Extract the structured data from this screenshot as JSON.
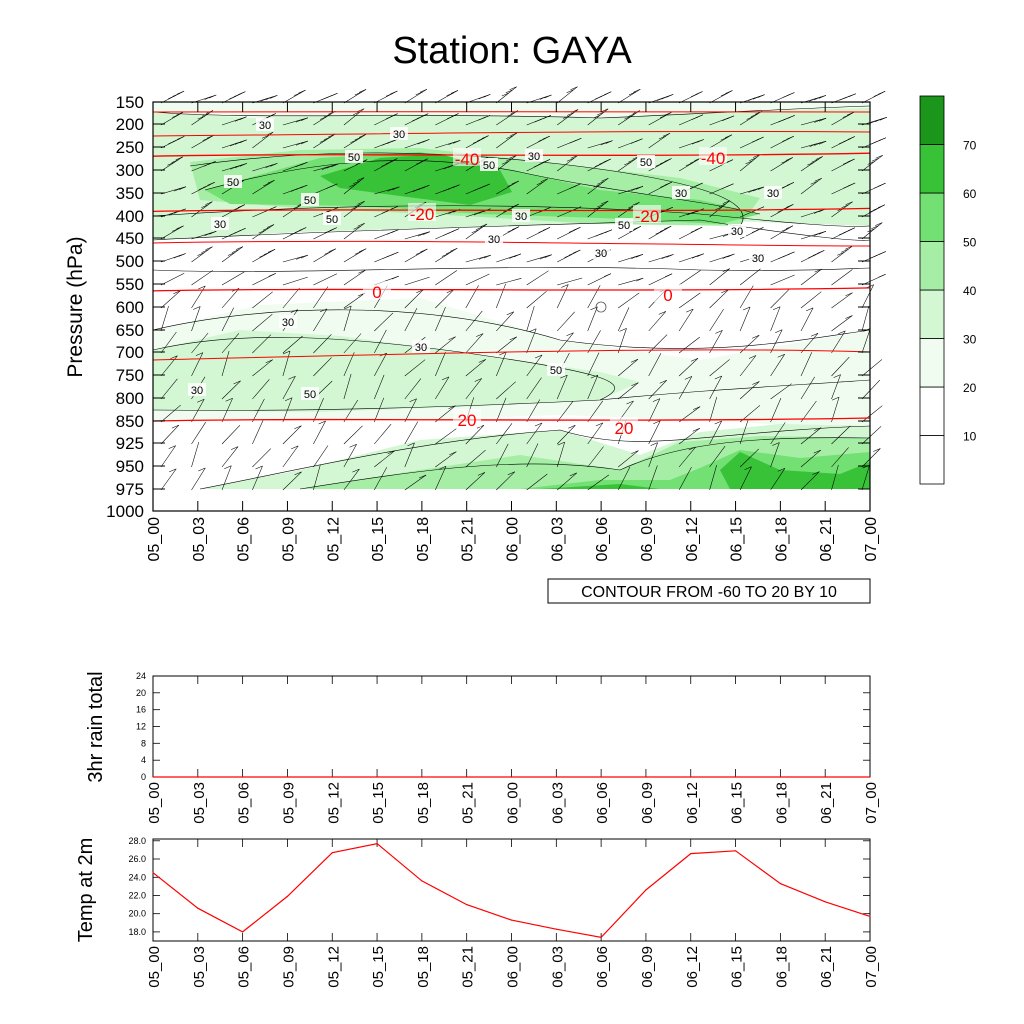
{
  "title": "Station: GAYA",
  "time_labels": [
    "05_00",
    "05_03",
    "05_06",
    "05_09",
    "05_12",
    "05_15",
    "05_18",
    "05_21",
    "06_00",
    "06_03",
    "06_06",
    "06_09",
    "06_12",
    "06_15",
    "06_18",
    "06_21",
    "07_00"
  ],
  "contour_note": "CONTOUR FROM -60 TO 20 BY 10",
  "colors": {
    "fill_levels": [
      "#ffffff",
      "#ffffff",
      "#f0fcf0",
      "#d2f7d2",
      "#a6eda6",
      "#72e072",
      "#38c238",
      "#1b961b"
    ],
    "temp_contour": "#ff0000",
    "contour_line": "#000000",
    "wind_barb": "#000000"
  },
  "chart_data": [
    {
      "type": "heatmap",
      "description_of_panel": "pressure-time cross section",
      "ylabel": "Pressure (hPa)",
      "y_ticks": [
        "150",
        "200",
        "250",
        "300",
        "350",
        "400",
        "450",
        "500",
        "550",
        "600",
        "650",
        "700",
        "750",
        "800",
        "850",
        "925",
        "950",
        "975",
        "1000"
      ],
      "x_ticks": [
        "05_00",
        "05_03",
        "05_06",
        "05_09",
        "05_12",
        "05_15",
        "05_18",
        "05_21",
        "06_00",
        "06_03",
        "06_06",
        "06_09",
        "06_12",
        "06_15",
        "06_18",
        "06_21",
        "07_00"
      ],
      "colorbar": {
        "levels": [
          10,
          20,
          30,
          40,
          50,
          60,
          70
        ],
        "labels": [
          "10",
          "20",
          "30",
          "40",
          "50",
          "60",
          "70"
        ]
      },
      "shaded_field_contour_labels": [
        "30",
        "30",
        "50",
        "50",
        "50",
        "50",
        "30",
        "50",
        "30",
        "30",
        "30",
        "50",
        "30",
        "50",
        "30",
        "30",
        "30",
        "30",
        "30",
        "30",
        "50",
        "30",
        "50"
      ],
      "temperature_contours": [
        {
          "label": "-40",
          "pressure": 270
        },
        {
          "label": "-20",
          "pressure": 390
        },
        {
          "label": "0",
          "pressure": 565
        },
        {
          "label": "20",
          "pressure": 850
        }
      ],
      "temperature_contour_labels": [
        "-40",
        "-40",
        "-20",
        "-20",
        "0",
        "0",
        "20",
        "20"
      ]
    },
    {
      "type": "line",
      "ylabel": "3hr rain total",
      "y_ticks": [
        "0",
        "4",
        "8",
        "12",
        "16",
        "20",
        "24"
      ],
      "ylim": [
        0,
        24
      ],
      "x": [
        "05_00",
        "05_03",
        "05_06",
        "05_09",
        "05_12",
        "05_15",
        "05_18",
        "05_21",
        "06_00",
        "06_03",
        "06_06",
        "06_09",
        "06_12",
        "06_15",
        "06_18",
        "06_21",
        "07_00"
      ],
      "values": [
        0,
        0,
        0,
        0,
        0,
        0,
        0,
        0,
        0,
        0,
        0,
        0,
        0,
        0,
        0,
        0,
        0
      ]
    },
    {
      "type": "line",
      "ylabel": "Temp at 2m",
      "y_ticks": [
        "18.0",
        "20.0",
        "22.0",
        "24.0",
        "26.0",
        "28.0"
      ],
      "ylim": [
        17.0,
        28.2
      ],
      "x": [
        "05_00",
        "05_03",
        "05_06",
        "05_09",
        "05_12",
        "05_15",
        "05_18",
        "05_21",
        "06_00",
        "06_03",
        "06_06",
        "06_09",
        "06_12",
        "06_15",
        "06_18",
        "06_21",
        "07_00"
      ],
      "values": [
        24.5,
        20.6,
        18.0,
        21.9,
        26.7,
        27.7,
        23.6,
        21.0,
        19.3,
        18.3,
        17.4,
        22.6,
        26.6,
        26.9,
        23.3,
        21.3,
        19.7
      ]
    }
  ]
}
